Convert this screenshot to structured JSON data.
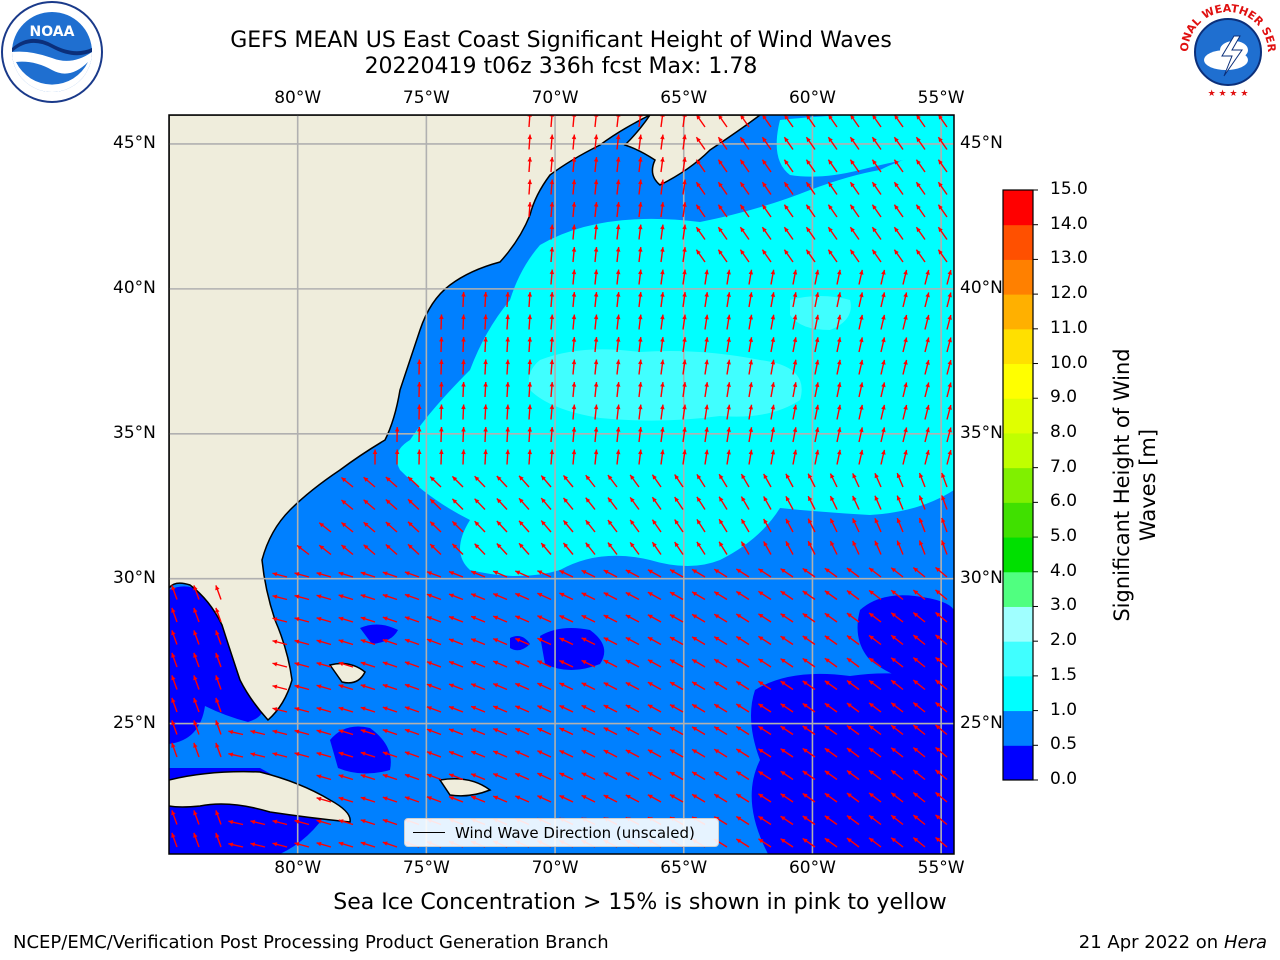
{
  "title": {
    "line1": "GEFS MEAN US East Coast Significant Height of Wind Waves",
    "line2": "20220419 t06z 336h fcst   Max: 1.78"
  },
  "map": {
    "lon_ticks": [
      "80°W",
      "75°W",
      "70°W",
      "65°W",
      "60°W",
      "55°W"
    ],
    "lat_ticks": [
      "45°N",
      "40°N",
      "35°N",
      "30°N",
      "25°N"
    ],
    "lon_range": [
      -85,
      -54.5
    ],
    "lat_range": [
      20.5,
      46
    ],
    "land_color": "#efeddc",
    "arrow_color": "#ff0000",
    "legend_label": "Wind Wave Direction (unscaled)"
  },
  "colorbar": {
    "title_line1": "Significant Height of Wind",
    "title_line2": "Waves [m]",
    "levels": [
      "0.0",
      "0.5",
      "1.0",
      "1.5",
      "2.0",
      "3.0",
      "4.0",
      "5.0",
      "6.0",
      "7.0",
      "8.0",
      "9.0",
      "10.0",
      "11.0",
      "12.0",
      "13.0",
      "14.0",
      "15.0"
    ],
    "colors": [
      "#0000ff",
      "#0080ff",
      "#00ffff",
      "#40ffff",
      "#a0ffff",
      "#50ff80",
      "#00e000",
      "#40e000",
      "#80f000",
      "#c0ff00",
      "#e0ff00",
      "#ffff00",
      "#ffe000",
      "#ffb000",
      "#ff8000",
      "#ff5000",
      "#ff0000"
    ]
  },
  "footer": {
    "note": "Sea Ice Concentration > 15% is shown in pink to yellow",
    "left": "NCEP/EMC/Verification Post Processing Product Generation Branch",
    "right_date": "21 Apr 2022 on",
    "right_machine": "Hera"
  },
  "logos": {
    "noaa_text": "NOAA",
    "nws_text": "NATIONAL WEATHER SERVICE"
  }
}
